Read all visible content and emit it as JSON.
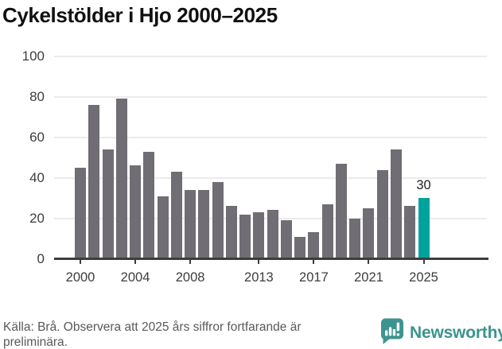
{
  "title": "Cykelstölder i Hjo 2000–2025",
  "chart_data": {
    "type": "bar",
    "categories": [
      2000,
      2001,
      2002,
      2003,
      2004,
      2005,
      2006,
      2007,
      2008,
      2009,
      2010,
      2011,
      2012,
      2013,
      2014,
      2015,
      2016,
      2017,
      2018,
      2019,
      2020,
      2021,
      2022,
      2023,
      2024,
      2025
    ],
    "values": [
      45,
      76,
      54,
      79,
      46,
      53,
      31,
      43,
      34,
      34,
      38,
      26,
      22,
      23,
      24,
      19,
      11,
      13,
      27,
      47,
      20,
      25,
      44,
      54,
      26,
      30
    ],
    "title": "Cykelstölder i Hjo 2000–2025",
    "xlabel": "",
    "ylabel": "",
    "ylim": [
      0,
      100
    ],
    "y_ticks": [
      0,
      20,
      40,
      60,
      80,
      100
    ],
    "x_tick_years": [
      2000,
      2004,
      2008,
      2013,
      2017,
      2021,
      2025
    ],
    "grid": true,
    "legend": "none",
    "bar_color": "#706d74",
    "highlight_color": "#00a39b",
    "highlight_index": 25,
    "annotation": {
      "index": 25,
      "label": "30"
    }
  },
  "footer": {
    "source_note": "Källa: Brå. Observera att 2025 års siffror fortfarande är preliminära."
  },
  "logo": {
    "text": "Newsworthy",
    "icon": "newsworthy-speech-bubble-chart-icon",
    "color": "#3a948c",
    "icon_color": "#3d948e"
  }
}
